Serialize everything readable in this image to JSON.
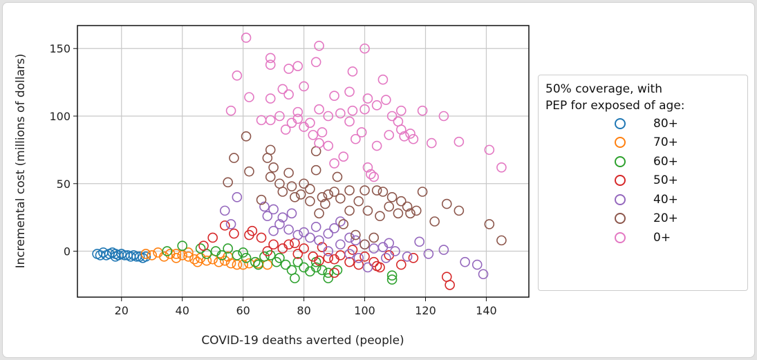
{
  "chart_data": {
    "type": "scatter",
    "xlabel": "COVID-19 deaths averted (people)",
    "ylabel": "Incremental cost (millions of dollars)",
    "xlim": [
      5.5,
      154
    ],
    "ylim": [
      -34,
      167
    ],
    "xticks": [
      20,
      40,
      60,
      80,
      100,
      120,
      140
    ],
    "yticks": [
      0,
      50,
      100,
      150
    ],
    "grid": true,
    "marker": "open-circle",
    "legend": {
      "title": [
        "50% coverage, with",
        "PEP for exposed of age:"
      ],
      "placement": "outside-right"
    },
    "series": [
      {
        "name": "80+",
        "color": "#1f77b4",
        "points": [
          [
            12,
            -2
          ],
          [
            13,
            -3
          ],
          [
            14,
            -1
          ],
          [
            15,
            -3
          ],
          [
            16,
            -2
          ],
          [
            17,
            -1
          ],
          [
            18,
            -2
          ],
          [
            18,
            -4
          ],
          [
            19,
            -3
          ],
          [
            20,
            -2
          ],
          [
            21,
            -3
          ],
          [
            22,
            -3
          ],
          [
            23,
            -4
          ],
          [
            24,
            -3
          ],
          [
            25,
            -4
          ],
          [
            26,
            -4
          ],
          [
            27,
            -5
          ],
          [
            28,
            -4
          ]
        ]
      },
      {
        "name": "70+",
        "color": "#ff7f0e",
        "points": [
          [
            28,
            -2
          ],
          [
            30,
            -3
          ],
          [
            32,
            -1
          ],
          [
            34,
            -4
          ],
          [
            36,
            -2
          ],
          [
            38,
            -5
          ],
          [
            38,
            -2
          ],
          [
            40,
            -3
          ],
          [
            42,
            -4
          ],
          [
            42,
            -1
          ],
          [
            44,
            -6
          ],
          [
            45,
            -8
          ],
          [
            46,
            -5
          ],
          [
            48,
            -7
          ],
          [
            50,
            -6
          ],
          [
            52,
            -8
          ],
          [
            54,
            -7
          ],
          [
            55,
            -4
          ],
          [
            56,
            -9
          ],
          [
            58,
            -10
          ],
          [
            60,
            -10
          ],
          [
            62,
            -9
          ],
          [
            65,
            -9
          ],
          [
            68,
            -10
          ]
        ]
      },
      {
        "name": "60+",
        "color": "#2ca02c",
        "points": [
          [
            35,
            0
          ],
          [
            40,
            4
          ],
          [
            46,
            2
          ],
          [
            48,
            -2
          ],
          [
            51,
            0
          ],
          [
            53,
            -3
          ],
          [
            55,
            2
          ],
          [
            58,
            -3
          ],
          [
            60,
            -1
          ],
          [
            61,
            -5
          ],
          [
            64,
            -8
          ],
          [
            65,
            -10
          ],
          [
            67,
            -4
          ],
          [
            69,
            -3
          ],
          [
            71,
            -8
          ],
          [
            72,
            -5
          ],
          [
            74,
            -10
          ],
          [
            76,
            -14
          ],
          [
            77,
            -20
          ],
          [
            78,
            -8
          ],
          [
            80,
            -12
          ],
          [
            82,
            -15
          ],
          [
            84,
            -12
          ],
          [
            84,
            -8
          ],
          [
            86,
            -14
          ],
          [
            88,
            -16
          ],
          [
            88,
            -20
          ],
          [
            91,
            -14
          ],
          [
            109,
            -21
          ],
          [
            109,
            -18
          ]
        ]
      },
      {
        "name": "50+",
        "color": "#d62728",
        "points": [
          [
            47,
            4
          ],
          [
            50,
            10
          ],
          [
            54,
            19
          ],
          [
            57,
            13
          ],
          [
            62,
            12
          ],
          [
            63,
            15
          ],
          [
            66,
            10
          ],
          [
            68,
            0
          ],
          [
            70,
            5
          ],
          [
            73,
            2
          ],
          [
            75,
            5
          ],
          [
            77,
            6
          ],
          [
            78,
            -2
          ],
          [
            80,
            2
          ],
          [
            83,
            -4
          ],
          [
            85,
            -7
          ],
          [
            86,
            3
          ],
          [
            88,
            -5
          ],
          [
            90,
            -6
          ],
          [
            90,
            -16
          ],
          [
            92,
            -3
          ],
          [
            95,
            -8
          ],
          [
            96,
            1
          ],
          [
            98,
            -10
          ],
          [
            100,
            -4
          ],
          [
            103,
            -8
          ],
          [
            104,
            -11
          ],
          [
            105,
            -12
          ],
          [
            108,
            -3
          ],
          [
            112,
            -10
          ],
          [
            116,
            -5
          ],
          [
            127,
            -19
          ],
          [
            128,
            -25
          ]
        ]
      },
      {
        "name": "40+",
        "color": "#9467bd",
        "points": [
          [
            54,
            30
          ],
          [
            56,
            20
          ],
          [
            58,
            40
          ],
          [
            67,
            33
          ],
          [
            68,
            26
          ],
          [
            70,
            31
          ],
          [
            70,
            15
          ],
          [
            72,
            20
          ],
          [
            73,
            25
          ],
          [
            75,
            16
          ],
          [
            76,
            28
          ],
          [
            78,
            12
          ],
          [
            80,
            14
          ],
          [
            82,
            10
          ],
          [
            84,
            18
          ],
          [
            85,
            8
          ],
          [
            88,
            13
          ],
          [
            88,
            0
          ],
          [
            90,
            17
          ],
          [
            92,
            22
          ],
          [
            92,
            5
          ],
          [
            95,
            10
          ],
          [
            95,
            -2
          ],
          [
            97,
            8
          ],
          [
            98,
            -5
          ],
          [
            100,
            5
          ],
          [
            101,
            -12
          ],
          [
            103,
            2
          ],
          [
            106,
            3
          ],
          [
            107,
            -5
          ],
          [
            108,
            6
          ],
          [
            110,
            0
          ],
          [
            114,
            -4
          ],
          [
            118,
            7
          ],
          [
            121,
            -2
          ],
          [
            126,
            1
          ],
          [
            133,
            -8
          ],
          [
            137,
            -10
          ],
          [
            139,
            -17
          ]
        ]
      },
      {
        "name": "20+",
        "color": "#8c564b",
        "points": [
          [
            55,
            51
          ],
          [
            57,
            69
          ],
          [
            61,
            85
          ],
          [
            62,
            59
          ],
          [
            66,
            38
          ],
          [
            68,
            69
          ],
          [
            69,
            75
          ],
          [
            69,
            55
          ],
          [
            70,
            62
          ],
          [
            72,
            50
          ],
          [
            73,
            44
          ],
          [
            75,
            58
          ],
          [
            76,
            48
          ],
          [
            77,
            40
          ],
          [
            79,
            42
          ],
          [
            80,
            50
          ],
          [
            82,
            46
          ],
          [
            82,
            37
          ],
          [
            84,
            74
          ],
          [
            84,
            60
          ],
          [
            85,
            28
          ],
          [
            86,
            40
          ],
          [
            87,
            35
          ],
          [
            88,
            42
          ],
          [
            90,
            44
          ],
          [
            91,
            55
          ],
          [
            92,
            39
          ],
          [
            93,
            20
          ],
          [
            95,
            45
          ],
          [
            95,
            30
          ],
          [
            97,
            12
          ],
          [
            98,
            37
          ],
          [
            100,
            45
          ],
          [
            100,
            5
          ],
          [
            101,
            30
          ],
          [
            103,
            10
          ],
          [
            104,
            45
          ],
          [
            105,
            26
          ],
          [
            106,
            44
          ],
          [
            108,
            33
          ],
          [
            109,
            40
          ],
          [
            111,
            28
          ],
          [
            112,
            37
          ],
          [
            114,
            33
          ],
          [
            115,
            28
          ],
          [
            117,
            30
          ],
          [
            119,
            44
          ],
          [
            123,
            22
          ],
          [
            127,
            35
          ],
          [
            131,
            30
          ],
          [
            141,
            20
          ],
          [
            145,
            8
          ]
        ]
      },
      {
        "name": "0+",
        "color": "#e377c2",
        "points": [
          [
            56,
            104
          ],
          [
            58,
            130
          ],
          [
            61,
            158
          ],
          [
            62,
            114
          ],
          [
            66,
            97
          ],
          [
            69,
            143
          ],
          [
            69,
            138
          ],
          [
            69,
            113
          ],
          [
            69,
            97
          ],
          [
            72,
            100
          ],
          [
            73,
            120
          ],
          [
            74,
            90
          ],
          [
            75,
            135
          ],
          [
            75,
            116
          ],
          [
            76,
            95
          ],
          [
            78,
            137
          ],
          [
            78,
            103
          ],
          [
            78,
            98
          ],
          [
            80,
            122
          ],
          [
            80,
            92
          ],
          [
            82,
            95
          ],
          [
            83,
            86
          ],
          [
            84,
            140
          ],
          [
            85,
            152
          ],
          [
            85,
            105
          ],
          [
            85,
            80
          ],
          [
            86,
            88
          ],
          [
            88,
            100
          ],
          [
            88,
            78
          ],
          [
            90,
            115
          ],
          [
            90,
            65
          ],
          [
            92,
            102
          ],
          [
            93,
            70
          ],
          [
            95,
            118
          ],
          [
            95,
            96
          ],
          [
            96,
            133
          ],
          [
            96,
            104
          ],
          [
            97,
            83
          ],
          [
            99,
            88
          ],
          [
            100,
            150
          ],
          [
            100,
            105
          ],
          [
            101,
            113
          ],
          [
            101,
            62
          ],
          [
            102,
            57
          ],
          [
            103,
            55
          ],
          [
            104,
            108
          ],
          [
            104,
            78
          ],
          [
            106,
            127
          ],
          [
            107,
            112
          ],
          [
            108,
            86
          ],
          [
            109,
            100
          ],
          [
            111,
            96
          ],
          [
            112,
            104
          ],
          [
            112,
            90
          ],
          [
            113,
            85
          ],
          [
            115,
            87
          ],
          [
            116,
            83
          ],
          [
            119,
            104
          ],
          [
            122,
            80
          ],
          [
            126,
            100
          ],
          [
            131,
            81
          ],
          [
            141,
            75
          ],
          [
            145,
            62
          ]
        ]
      }
    ]
  }
}
